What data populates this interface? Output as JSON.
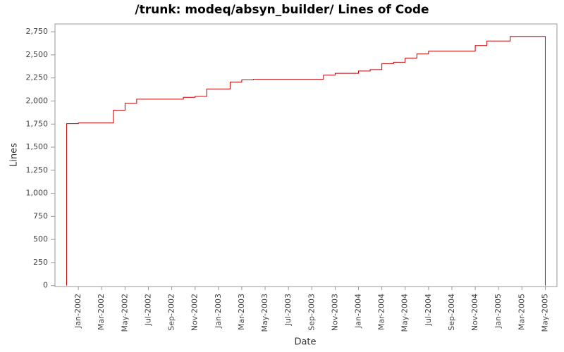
{
  "chart_data": {
    "type": "step",
    "title": "/trunk: modeq/absyn_builder/ Lines of Code",
    "x_label": "Date",
    "y_label": "Lines",
    "x": [
      "2001-12",
      "2001-12",
      "2002-01",
      "2002-04",
      "2002-05",
      "2002-06",
      "2002-10",
      "2002-11",
      "2002-12",
      "2003-02",
      "2003-03",
      "2003-04",
      "2003-10",
      "2003-11",
      "2004-01",
      "2004-02",
      "2004-03",
      "2004-04",
      "2004-05",
      "2004-06",
      "2004-07",
      "2004-11",
      "2004-12",
      "2005-02",
      "2005-05",
      "2005-05"
    ],
    "series": [
      {
        "name": "Lines",
        "color": "#c00000",
        "values": [
          0,
          1755,
          1762,
          1900,
          1975,
          2020,
          2040,
          2050,
          2130,
          2205,
          2230,
          2235,
          2280,
          2300,
          2325,
          2340,
          2405,
          2420,
          2465,
          2510,
          2540,
          2600,
          2650,
          2700,
          2700,
          0
        ]
      }
    ],
    "xlim": [
      "2001-11",
      "2005-06"
    ],
    "xticks": [
      {
        "value": "2002-01",
        "label": "Jan-2002"
      },
      {
        "value": "2002-03",
        "label": "Mar-2002"
      },
      {
        "value": "2002-05",
        "label": "May-2002"
      },
      {
        "value": "2002-07",
        "label": "Jul-2002"
      },
      {
        "value": "2002-09",
        "label": "Sep-2002"
      },
      {
        "value": "2002-11",
        "label": "Nov-2002"
      },
      {
        "value": "2003-01",
        "label": "Jan-2003"
      },
      {
        "value": "2003-03",
        "label": "Mar-2003"
      },
      {
        "value": "2003-05",
        "label": "May-2003"
      },
      {
        "value": "2003-07",
        "label": "Jul-2003"
      },
      {
        "value": "2003-09",
        "label": "Sep-2003"
      },
      {
        "value": "2003-11",
        "label": "Nov-2003"
      },
      {
        "value": "2004-01",
        "label": "Jan-2004"
      },
      {
        "value": "2004-03",
        "label": "Mar-2004"
      },
      {
        "value": "2004-05",
        "label": "May-2004"
      },
      {
        "value": "2004-07",
        "label": "Jul-2004"
      },
      {
        "value": "2004-09",
        "label": "Sep-2004"
      },
      {
        "value": "2004-11",
        "label": "Nov-2004"
      },
      {
        "value": "2005-01",
        "label": "Jan-2005"
      },
      {
        "value": "2005-03",
        "label": "Mar-2005"
      },
      {
        "value": "2005-05",
        "label": "May-2005"
      }
    ],
    "ylim": [
      -10,
      2835
    ],
    "yticks": [
      0,
      250,
      500,
      750,
      {
        "value": 1000,
        "label": "1,000"
      },
      {
        "value": 1250,
        "label": "1,250"
      },
      {
        "value": 1500,
        "label": "1,500"
      },
      {
        "value": 1750,
        "label": "1,750"
      },
      {
        "value": 2000,
        "label": "2,000"
      },
      {
        "value": 2250,
        "label": "2,250"
      },
      {
        "value": 2500,
        "label": "2,500"
      },
      {
        "value": 2750,
        "label": "2,750"
      }
    ],
    "grid": false
  }
}
